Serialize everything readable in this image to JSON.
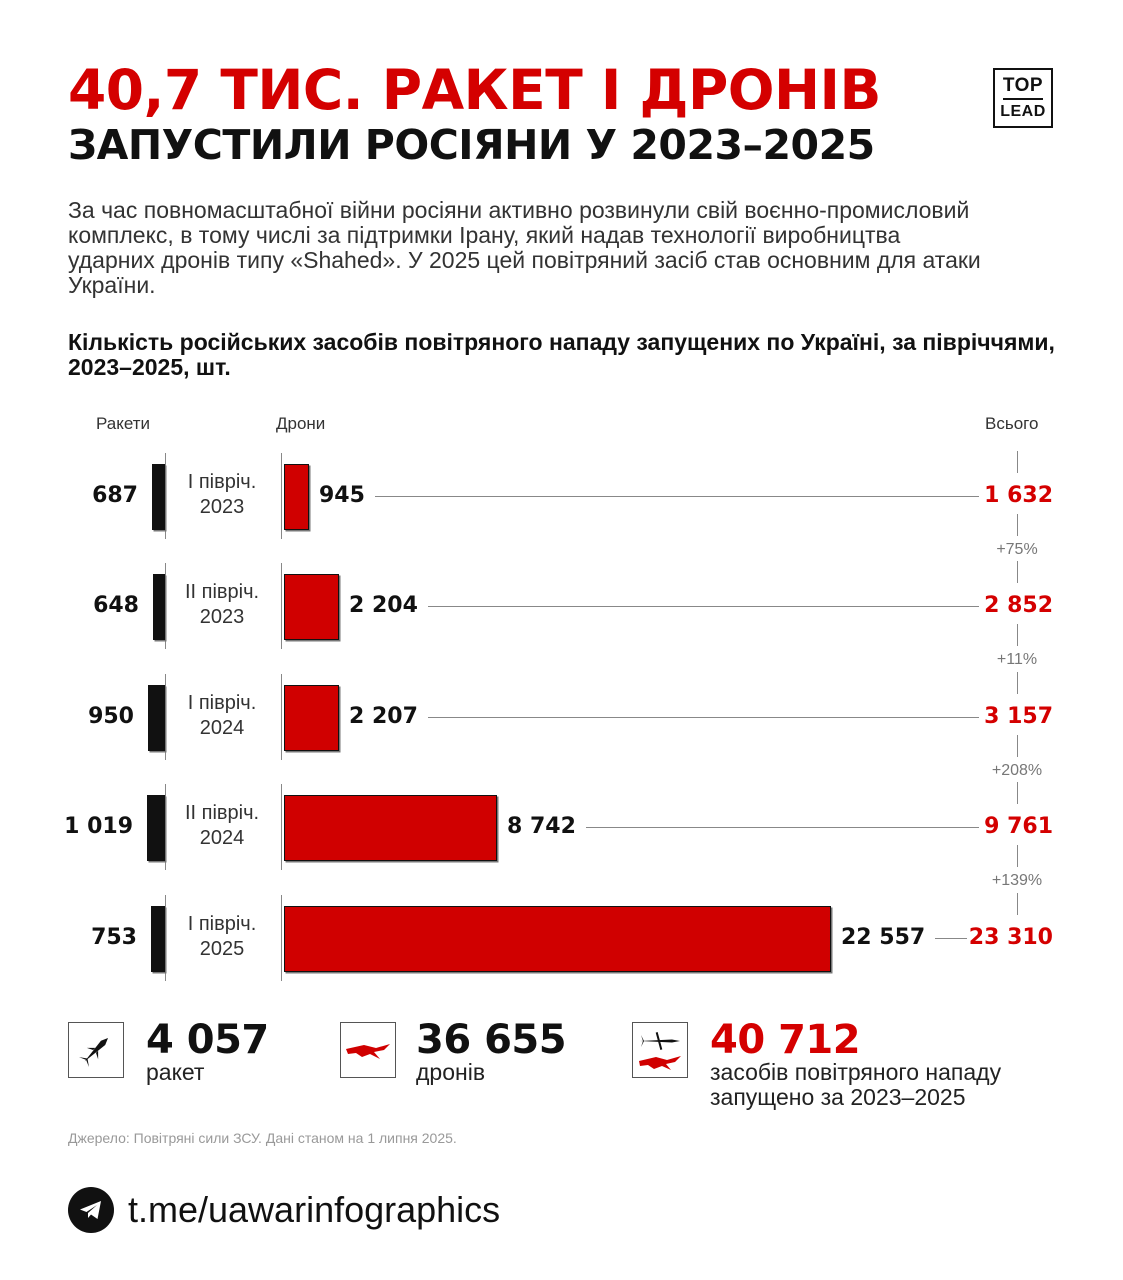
{
  "header": {
    "title_line1": "40,7 ТИС. РАКЕТ І ДРОНІВ",
    "title_line2": "ЗАПУСТИЛИ РОСІЯНИ У 2023–2025",
    "logo_top": "TOP",
    "logo_bottom": "LEAD"
  },
  "intro": "За час повномасштабної війни росіяни активно розвинули свій воєнно-промисловий комплекс, в тому числі за підтримки Ірану, який надав технології виробництва ударних дронів типу «Shahed». У 2025 цей повітряний засіб став основним для атаки України.",
  "colors": {
    "accent": "#d40000",
    "missile": "#111111",
    "drone": "#d00000"
  },
  "chart_data": {
    "type": "bar",
    "title": "Кількість російських засобів повітряного нападу запущених по Україні, за півріччями, 2023–2025, шт.",
    "column_headers": {
      "missiles": "Ракети",
      "drones": "Дрони",
      "total": "Всього"
    },
    "categories": [
      "І півріч. 2023",
      "ІІ півріч. 2023",
      "І півріч. 2024",
      "ІІ півріч. 2024",
      "І півріч. 2025"
    ],
    "series": [
      {
        "name": "Ракети",
        "values": [
          687,
          648,
          950,
          1019,
          753
        ],
        "labels": [
          "687",
          "648",
          "950",
          "1 019",
          "753"
        ]
      },
      {
        "name": "Дрони",
        "values": [
          945,
          2204,
          2207,
          8742,
          22557
        ],
        "labels": [
          "945",
          "2 204",
          "2 207",
          "8 742",
          "22 557"
        ]
      }
    ],
    "totals": [
      1632,
      2852,
      3157,
      9761,
      23310
    ],
    "total_labels": [
      "1 632",
      "2 852",
      "3 157",
      "9 761",
      "23 310"
    ],
    "changes": [
      "+75%",
      "+11%",
      "+208%",
      "+139%"
    ]
  },
  "summary": [
    {
      "icon": "missile-icon",
      "number": "4 057",
      "label": "ракет"
    },
    {
      "icon": "drone-icon",
      "number": "36 655",
      "label": "дронів"
    },
    {
      "icon": "missile-and-drone-icon",
      "number": "40 712",
      "label_line1": "засобів повітряного нападу",
      "label_line2": "запущено за 2023–2025"
    }
  ],
  "source": "Джерело: Повітряні сили ЗСУ. Дані станом на 1 липня 2025.",
  "footer": {
    "icon": "telegram-icon",
    "link": "t.me/uawarinfographics"
  }
}
